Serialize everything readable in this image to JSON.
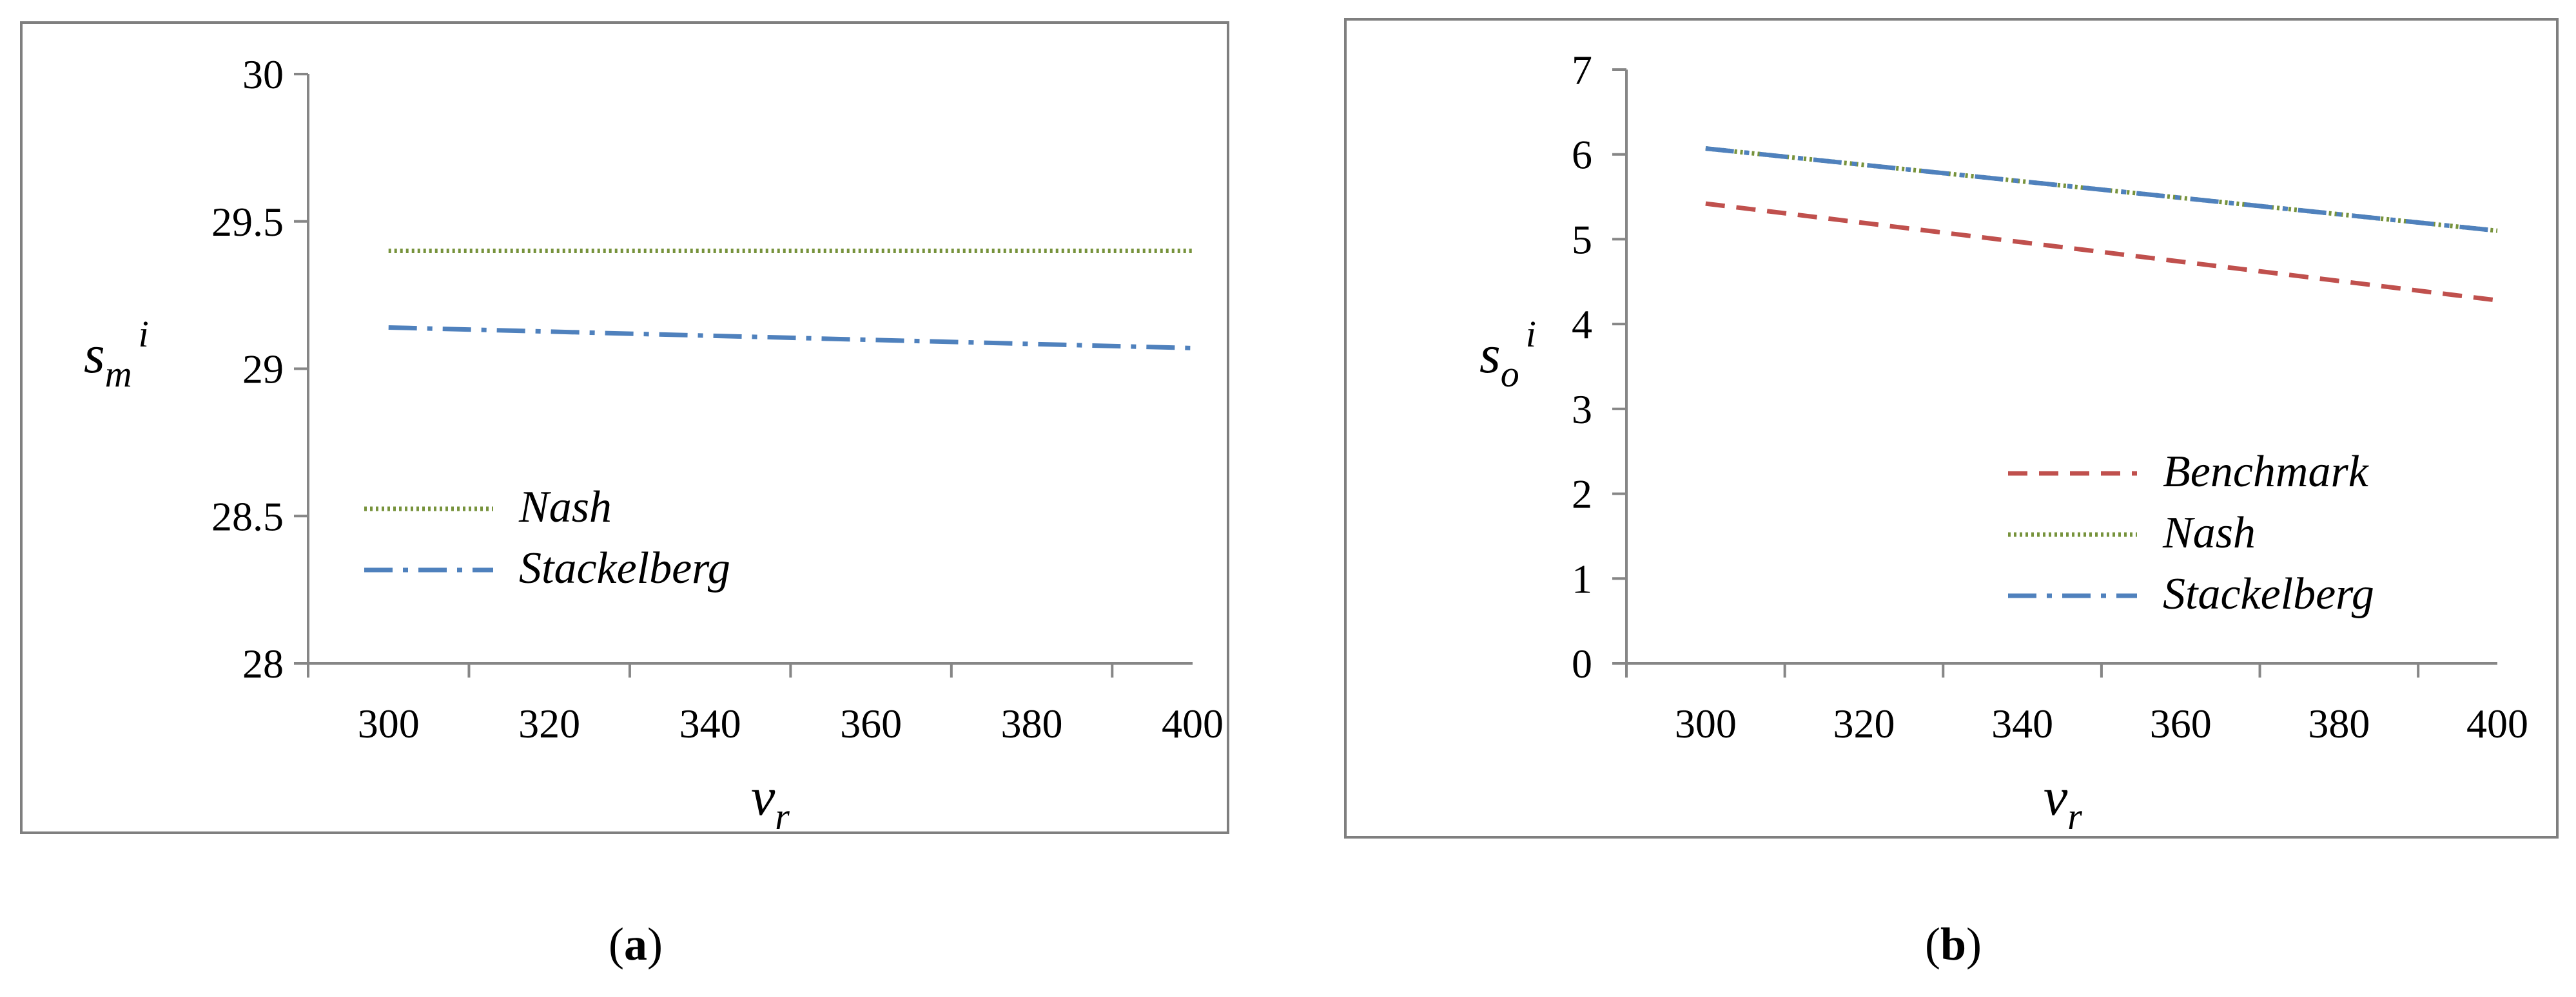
{
  "chart_data": [
    {
      "type": "line",
      "caption": "(a)",
      "caption_letter": "a",
      "xlabel": "v",
      "xlabel_sub": "r",
      "ylabel": "s",
      "ylabel_sub": "m",
      "ylabel_sup": "i",
      "xlim": [
        290,
        400
      ],
      "ylim": [
        28,
        30
      ],
      "xticks": [
        300,
        320,
        340,
        360,
        380,
        400
      ],
      "yticks": [
        "28",
        "28.5",
        "29",
        "29.5",
        "30"
      ],
      "x": [
        300,
        400
      ],
      "legend_position": "bottom-left",
      "series": [
        {
          "name": "Nash",
          "values": [
            29.4,
            29.4
          ],
          "color": "#77933c",
          "style": "dotted"
        },
        {
          "name": "Stackelberg",
          "values": [
            29.14,
            29.07
          ],
          "color": "#4f81bd",
          "style": "dash-dot"
        }
      ]
    },
    {
      "type": "line",
      "caption": "(b)",
      "caption_letter": "b",
      "xlabel": "v",
      "xlabel_sub": "r",
      "ylabel": "s",
      "ylabel_sub": "o",
      "ylabel_sup": "i",
      "xlim": [
        290,
        400
      ],
      "ylim": [
        0,
        7
      ],
      "xticks": [
        300,
        320,
        340,
        360,
        380,
        400
      ],
      "yticks": [
        "0",
        "1",
        "2",
        "3",
        "4",
        "5",
        "6",
        "7"
      ],
      "x": [
        300,
        400
      ],
      "legend_position": "bottom-right",
      "series": [
        {
          "name": "Benchmark",
          "values": [
            5.42,
            4.28
          ],
          "color": "#c0504d",
          "style": "dashed"
        },
        {
          "name": "Nash",
          "values": [
            6.07,
            5.1
          ],
          "color": "#77933c",
          "style": "dotted"
        },
        {
          "name": "Stackelberg",
          "values": [
            6.07,
            5.1
          ],
          "color": "#4f81bd",
          "style": "dash-dot"
        }
      ]
    }
  ]
}
